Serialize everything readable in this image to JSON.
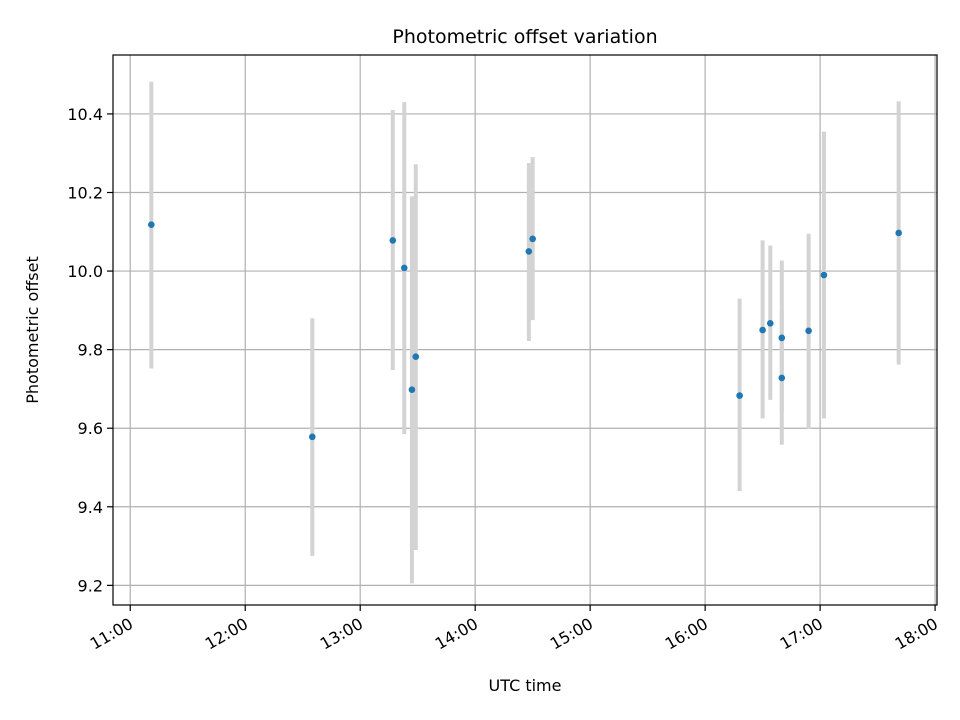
{
  "chart_data": {
    "type": "scatter",
    "title": "Photometric offset variation",
    "xlabel": "UTC time",
    "ylabel": "Photometric offset",
    "x_axis_type": "time",
    "xlim": [
      "10:51",
      "18:01"
    ],
    "ylim": [
      9.15,
      10.55
    ],
    "x_ticks": [
      "11:00",
      "12:00",
      "13:00",
      "14:00",
      "15:00",
      "16:00",
      "17:00",
      "18:00"
    ],
    "y_ticks": [
      9.2,
      9.4,
      9.6,
      9.8,
      10.0,
      10.2,
      10.4
    ],
    "y_tick_labels": [
      "9.2",
      "9.4",
      "9.6",
      "9.8",
      "10.0",
      "10.2",
      "10.4"
    ],
    "grid": true,
    "point_color": "#1f77b4",
    "errorbar_color": "#d3d3d3",
    "points": [
      {
        "x": "11:11",
        "y": 10.118,
        "yerr_low": 9.752,
        "yerr_high": 10.482
      },
      {
        "x": "12:35",
        "y": 9.578,
        "yerr_low": 9.275,
        "yerr_high": 9.88
      },
      {
        "x": "13:17",
        "y": 10.078,
        "yerr_low": 9.748,
        "yerr_high": 10.41
      },
      {
        "x": "13:23",
        "y": 10.008,
        "yerr_low": 9.585,
        "yerr_high": 10.43
      },
      {
        "x": "13:27",
        "y": 9.698,
        "yerr_low": 9.205,
        "yerr_high": 10.19
      },
      {
        "x": "13:29",
        "y": 9.782,
        "yerr_low": 9.29,
        "yerr_high": 10.272
      },
      {
        "x": "14:28",
        "y": 10.05,
        "yerr_low": 9.822,
        "yerr_high": 10.275
      },
      {
        "x": "14:30",
        "y": 10.082,
        "yerr_low": 9.875,
        "yerr_high": 10.29
      },
      {
        "x": "16:18",
        "y": 9.683,
        "yerr_low": 9.44,
        "yerr_high": 9.93
      },
      {
        "x": "16:30",
        "y": 9.85,
        "yerr_low": 9.625,
        "yerr_high": 10.078
      },
      {
        "x": "16:34",
        "y": 9.867,
        "yerr_low": 9.672,
        "yerr_high": 10.065
      },
      {
        "x": "16:40",
        "y": 9.83,
        "yerr_low": 9.638,
        "yerr_high": 10.027
      },
      {
        "x": "16:40",
        "y": 9.728,
        "yerr_low": 9.558,
        "yerr_high": 9.9
      },
      {
        "x": "16:54",
        "y": 9.848,
        "yerr_low": 9.598,
        "yerr_high": 10.095
      },
      {
        "x": "17:02",
        "y": 9.99,
        "yerr_low": 9.625,
        "yerr_high": 10.355
      },
      {
        "x": "17:41",
        "y": 10.097,
        "yerr_low": 9.762,
        "yerr_high": 10.432
      }
    ]
  }
}
